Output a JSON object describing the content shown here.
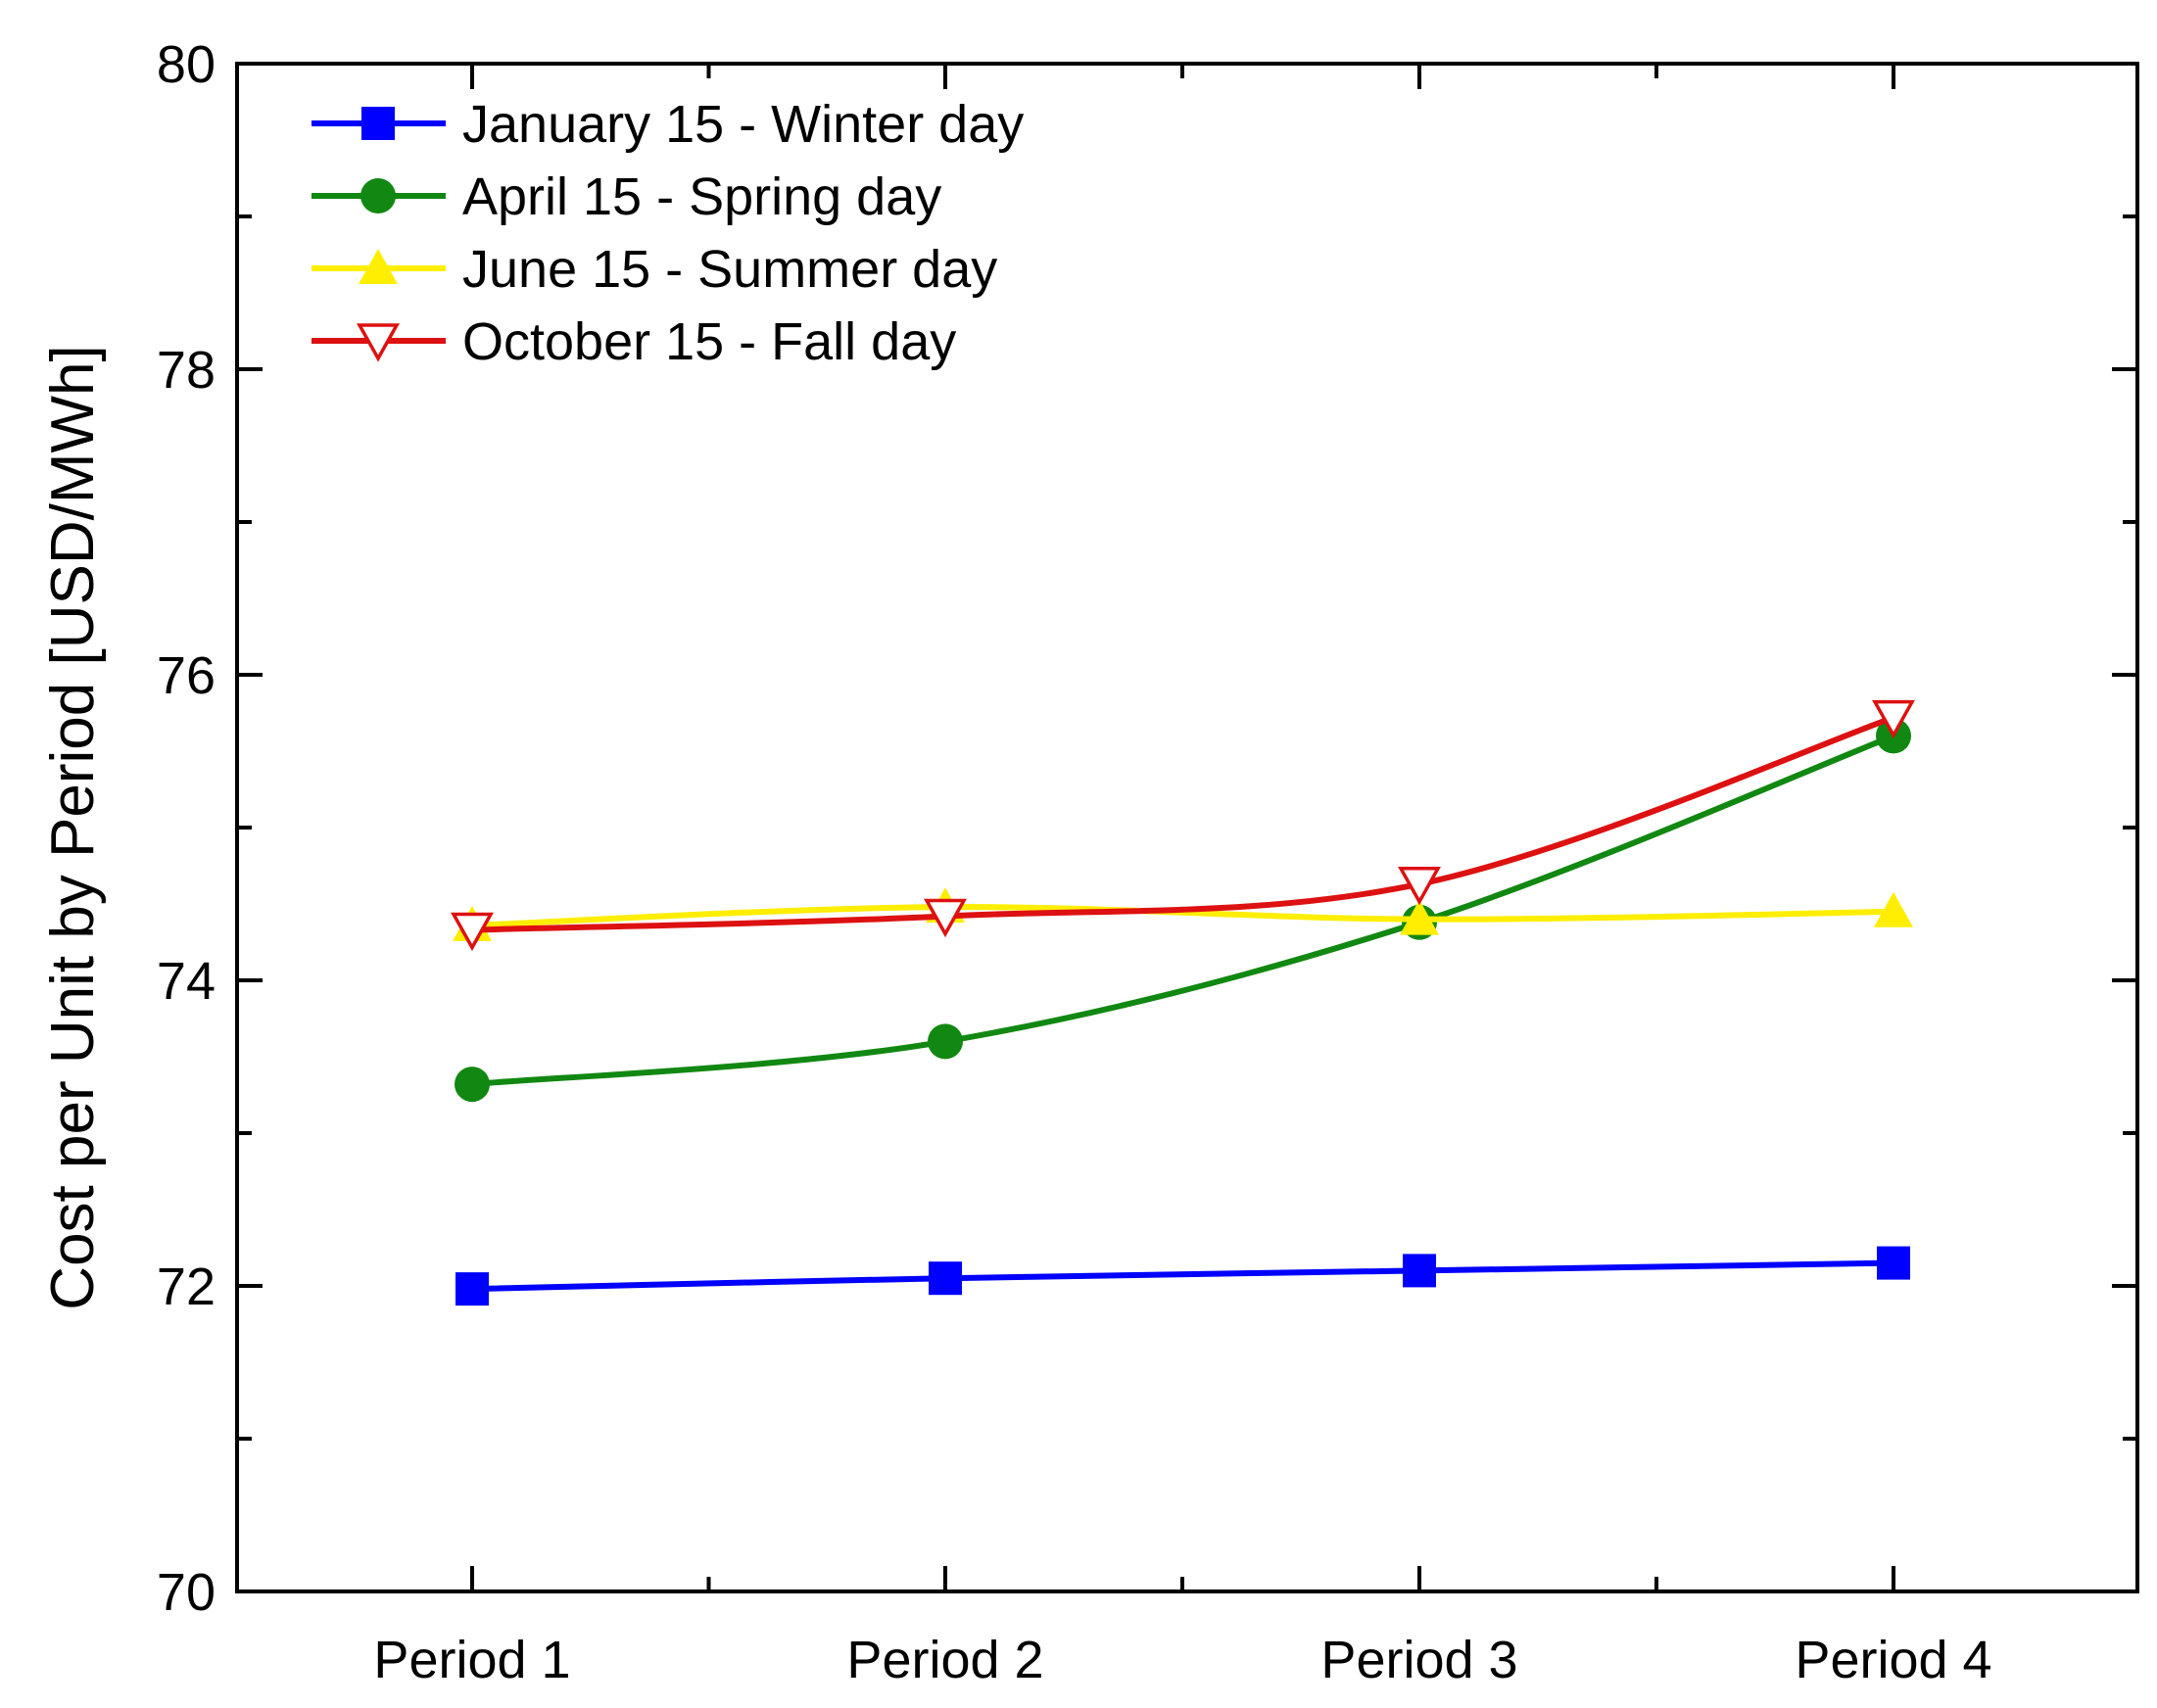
{
  "chart_data": {
    "type": "line",
    "title": "",
    "xlabel": "",
    "ylabel": "Cost per Unit by Period  [USD/MWh]",
    "categories": [
      "Period 1",
      "Period 2",
      "Period 3",
      "Period 4"
    ],
    "ylim": [
      70,
      80
    ],
    "yticks": [
      70,
      72,
      74,
      76,
      78,
      80
    ],
    "grid": false,
    "legend_position": "top-left",
    "series": [
      {
        "name": "January 15 - Winter day",
        "color": "#0000ff",
        "marker": "square",
        "values": [
          71.98,
          72.05,
          72.1,
          72.15
        ]
      },
      {
        "name": "April 15 - Spring day",
        "color": "#118811",
        "marker": "circle",
        "values": [
          73.32,
          73.6,
          74.38,
          75.6
        ]
      },
      {
        "name": "June 15 - Summer day",
        "color": "#ffee00",
        "marker": "triangle-up",
        "values": [
          74.36,
          74.48,
          74.4,
          74.45
        ]
      },
      {
        "name": "October 15 - Fall day",
        "color": "#dd1111",
        "marker": "triangle-down-open",
        "values": [
          74.33,
          74.42,
          74.63,
          75.72
        ]
      }
    ]
  }
}
